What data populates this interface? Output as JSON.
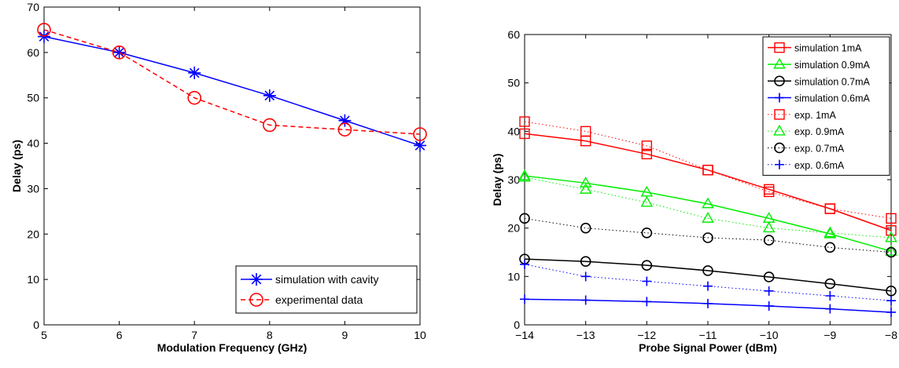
{
  "chart_data": [
    {
      "type": "line",
      "xlabel": "Modulation Frequency (GHz)",
      "ylabel": "Delay (ps)",
      "xlim": [
        5,
        10
      ],
      "ylim": [
        0,
        70
      ],
      "xticks": [
        5,
        6,
        7,
        8,
        9,
        10
      ],
      "yticks": [
        0,
        10,
        20,
        30,
        40,
        50,
        60,
        70
      ],
      "grid": false,
      "legend_position": "bottom-right",
      "series": [
        {
          "name": "simulation with cavity",
          "color": "#0000ff",
          "line": "solid",
          "marker": "asterisk",
          "x": [
            5,
            6,
            7,
            8,
            9,
            10
          ],
          "y": [
            63.5,
            60,
            55.5,
            50.5,
            45,
            39.5
          ]
        },
        {
          "name": "experimental data",
          "color": "#ff0000",
          "line": "dashed",
          "marker": "circle",
          "x": [
            5,
            6,
            7,
            8,
            9,
            10
          ],
          "y": [
            65,
            60,
            50,
            44,
            43,
            42
          ]
        }
      ]
    },
    {
      "type": "line",
      "xlabel": "Probe Signal Power (dBm)",
      "ylabel": "Delay (ps)",
      "xlim": [
        -14,
        -8
      ],
      "ylim": [
        0,
        60
      ],
      "xticks": [
        "−14",
        "−13",
        "−12",
        "−11",
        "−10",
        "−9",
        "−8"
      ],
      "yticks": [
        0,
        10,
        20,
        30,
        40,
        50,
        60
      ],
      "grid": false,
      "legend_position": "top-right",
      "series": [
        {
          "name": "simulation 1mA",
          "color": "#ff0000",
          "line": "solid",
          "marker": "square",
          "x": [
            -14,
            -13,
            -12,
            -11,
            -10,
            -9,
            -8
          ],
          "y": [
            39.5,
            38,
            35.3,
            32,
            28,
            24,
            19.5
          ]
        },
        {
          "name": "simulation 0.9mA",
          "color": "#00ee00",
          "line": "solid",
          "marker": "triangle",
          "x": [
            -14,
            -13,
            -12,
            -11,
            -10,
            -9,
            -8
          ],
          "y": [
            30.8,
            29.3,
            27.4,
            25,
            22,
            18.8,
            15.2
          ]
        },
        {
          "name": "simulation 0.7mA",
          "color": "#000000",
          "line": "solid",
          "marker": "circle",
          "x": [
            -14,
            -13,
            -12,
            -11,
            -10,
            -9,
            -8
          ],
          "y": [
            13.6,
            13.1,
            12.3,
            11.2,
            9.9,
            8.5,
            7
          ]
        },
        {
          "name": "simulation 0.6mA",
          "color": "#0000ff",
          "line": "solid",
          "marker": "plus",
          "x": [
            -14,
            -13,
            -12,
            -11,
            -10,
            -9,
            -8
          ],
          "y": [
            5.3,
            5.1,
            4.8,
            4.4,
            3.9,
            3.3,
            2.6
          ]
        },
        {
          "name": "exp. 1mA",
          "color": "#ff0000",
          "line": "dotted",
          "marker": "square",
          "x": [
            -14,
            -13,
            -12,
            -11,
            -10,
            -9,
            -8
          ],
          "y": [
            42,
            40,
            37,
            32,
            27.5,
            24,
            22
          ]
        },
        {
          "name": "exp. 0.9mA",
          "color": "#00ee00",
          "line": "dotted",
          "marker": "triangle",
          "x": [
            -14,
            -13,
            -12,
            -11,
            -10,
            -9,
            -8
          ],
          "y": [
            30.5,
            28,
            25.3,
            22,
            20,
            19,
            18
          ]
        },
        {
          "name": "exp. 0.7mA",
          "color": "#000000",
          "line": "dotted",
          "marker": "circle",
          "x": [
            -14,
            -13,
            -12,
            -11,
            -10,
            -9,
            -8
          ],
          "y": [
            22,
            20,
            19,
            18,
            17.5,
            16,
            15
          ]
        },
        {
          "name": "exp. 0.6mA",
          "color": "#0000ff",
          "line": "dotted",
          "marker": "plus",
          "x": [
            -14,
            -13,
            -12,
            -11,
            -10,
            -9,
            -8
          ],
          "y": [
            12.5,
            10,
            9,
            8,
            7,
            6,
            5
          ]
        }
      ]
    }
  ]
}
